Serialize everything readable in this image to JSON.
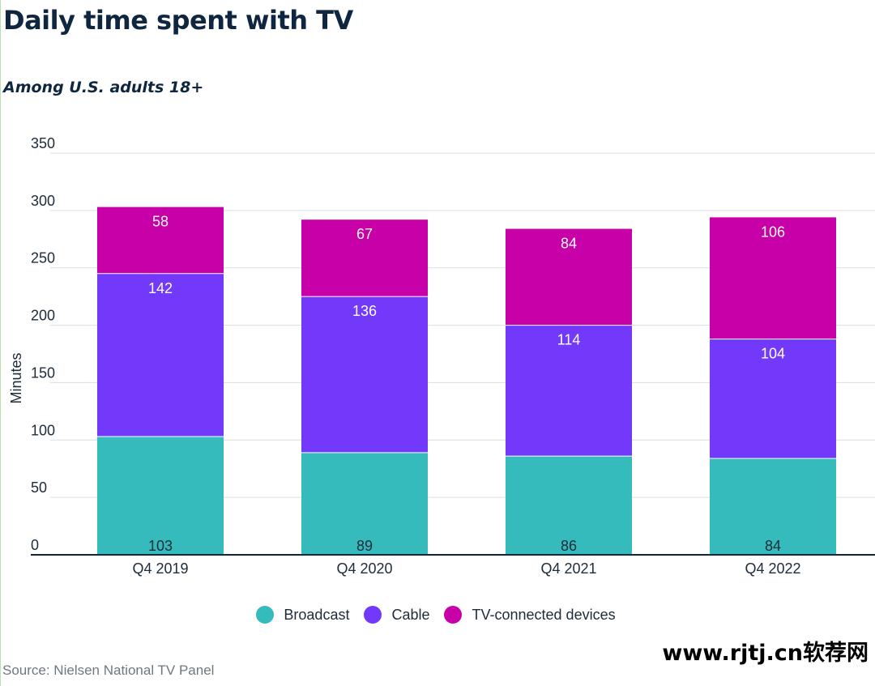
{
  "header": {
    "title": "Daily time spent with TV",
    "subtitle": "Among U.S. adults 18+"
  },
  "chart_data": {
    "type": "bar",
    "stacked": true,
    "title": "Daily time spent with TV",
    "subtitle": "Among U.S. adults 18+",
    "xlabel": "",
    "ylabel": "Minutes",
    "ylim": [
      0,
      350
    ],
    "yticks": [
      0,
      50,
      100,
      150,
      200,
      250,
      300,
      350
    ],
    "grid": true,
    "legend_position": "bottom",
    "categories": [
      "Q4 2019",
      "Q4 2020",
      "Q4 2021",
      "Q4 2022"
    ],
    "series": [
      {
        "name": "Broadcast",
        "color": "#35bbbb",
        "values": [
          103,
          89,
          86,
          84
        ]
      },
      {
        "name": "Cable",
        "color": "#7239fb",
        "values": [
          142,
          136,
          114,
          104
        ]
      },
      {
        "name": "TV-connected devices",
        "color": "#c800a8",
        "values": [
          58,
          67,
          84,
          106
        ]
      }
    ]
  },
  "footer": {
    "source": "Source: Nielsen National TV Panel",
    "watermark": "www.rjtj.cn软荐网"
  }
}
